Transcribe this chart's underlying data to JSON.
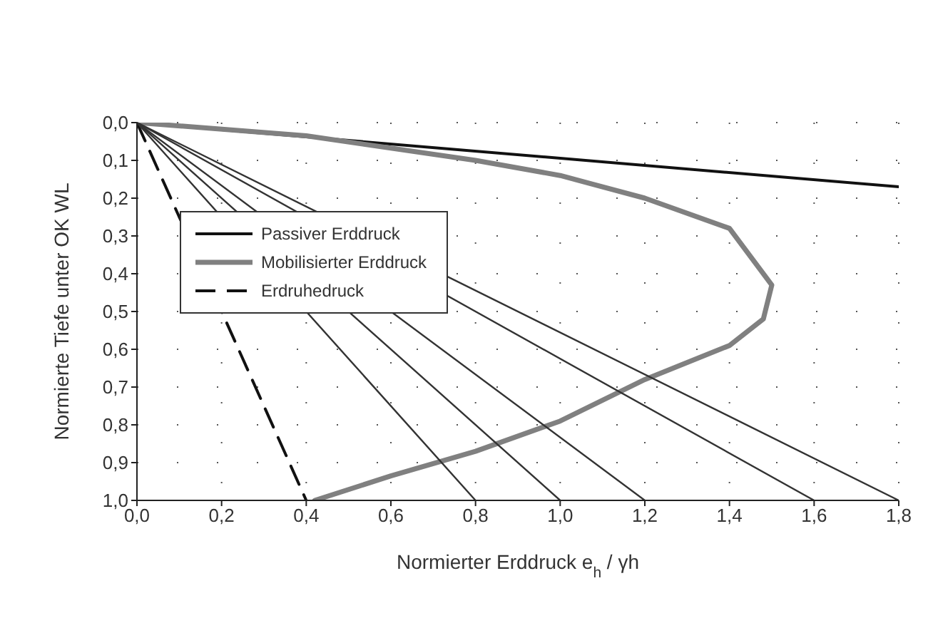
{
  "chart_data": {
    "type": "line",
    "xlabel": "Normierter Erddruck e$_{h}$ / γh",
    "ylabel": "Normierte Tiefe unter OK WL",
    "xlim": [
      0,
      1.8
    ],
    "ylim": [
      1.0,
      0.0
    ],
    "xticks": [
      {
        "value": 0,
        "label": "0,0"
      },
      {
        "value": 0.2,
        "label": "0,2"
      },
      {
        "value": 0.4,
        "label": "0,4"
      },
      {
        "value": 0.6,
        "label": "0,6"
      },
      {
        "value": 0.8,
        "label": "0,8"
      },
      {
        "value": 1.0,
        "label": "1,0"
      },
      {
        "value": 1.2,
        "label": "1,2"
      },
      {
        "value": 1.4,
        "label": "1,4"
      },
      {
        "value": 1.6,
        "label": "1,6"
      },
      {
        "value": 1.8,
        "label": "1,8"
      }
    ],
    "yticks": [
      {
        "value": 0,
        "label": "0,0"
      },
      {
        "value": 0.1,
        "label": "0,1"
      },
      {
        "value": 0.2,
        "label": "0,2"
      },
      {
        "value": 0.3,
        "label": "0,3"
      },
      {
        "value": 0.4,
        "label": "0,4"
      },
      {
        "value": 0.5,
        "label": "0,5"
      },
      {
        "value": 0.6,
        "label": "0,6"
      },
      {
        "value": 0.7,
        "label": "0,7"
      },
      {
        "value": 0.8,
        "label": "0,8"
      },
      {
        "value": 0.9,
        "label": "0,9"
      },
      {
        "value": 1.0,
        "label": "1,0"
      }
    ],
    "grid": true,
    "legend": "top left",
    "marker": "none",
    "line_style": "solid",
    "series": [
      {
        "name": "Passiver Erddruck",
        "color": "#111111",
        "x": [
          0,
          1.8
        ],
        "values": [
          0,
          0.17
        ]
      },
      {
        "name": "Mobilisierter Erddruck",
        "color": "#808080",
        "x": [
          0,
          0.4,
          0.8,
          1.0,
          1.2,
          1.4,
          1.5,
          1.48,
          1.4,
          1.2,
          1.0,
          0.8,
          0.6,
          0.42
        ],
        "values": [
          0,
          0.035,
          0.1,
          0.14,
          0.2,
          0.28,
          0.43,
          0.52,
          0.59,
          0.68,
          0.79,
          0.87,
          0.935,
          1.0
        ]
      },
      {
        "name": "Erdruhedruck",
        "color": "#111111",
        "line_style": "dashed",
        "x": [
          0,
          0.4
        ],
        "values": [
          0,
          1.0
        ]
      },
      {
        "color": "#333333",
        "x": [
          0,
          0.8
        ],
        "values": [
          0,
          1.0
        ]
      },
      {
        "color": "#333333",
        "x": [
          0,
          1.0
        ],
        "values": [
          0,
          1.0
        ]
      },
      {
        "color": "#333333",
        "x": [
          0,
          1.2
        ],
        "values": [
          0,
          1.0
        ]
      },
      {
        "color": "#333333",
        "x": [
          0,
          1.6
        ],
        "values": [
          0,
          1.0
        ]
      },
      {
        "color": "#333333",
        "x": [
          0,
          1.8
        ],
        "values": [
          0,
          1.0
        ]
      }
    ]
  }
}
